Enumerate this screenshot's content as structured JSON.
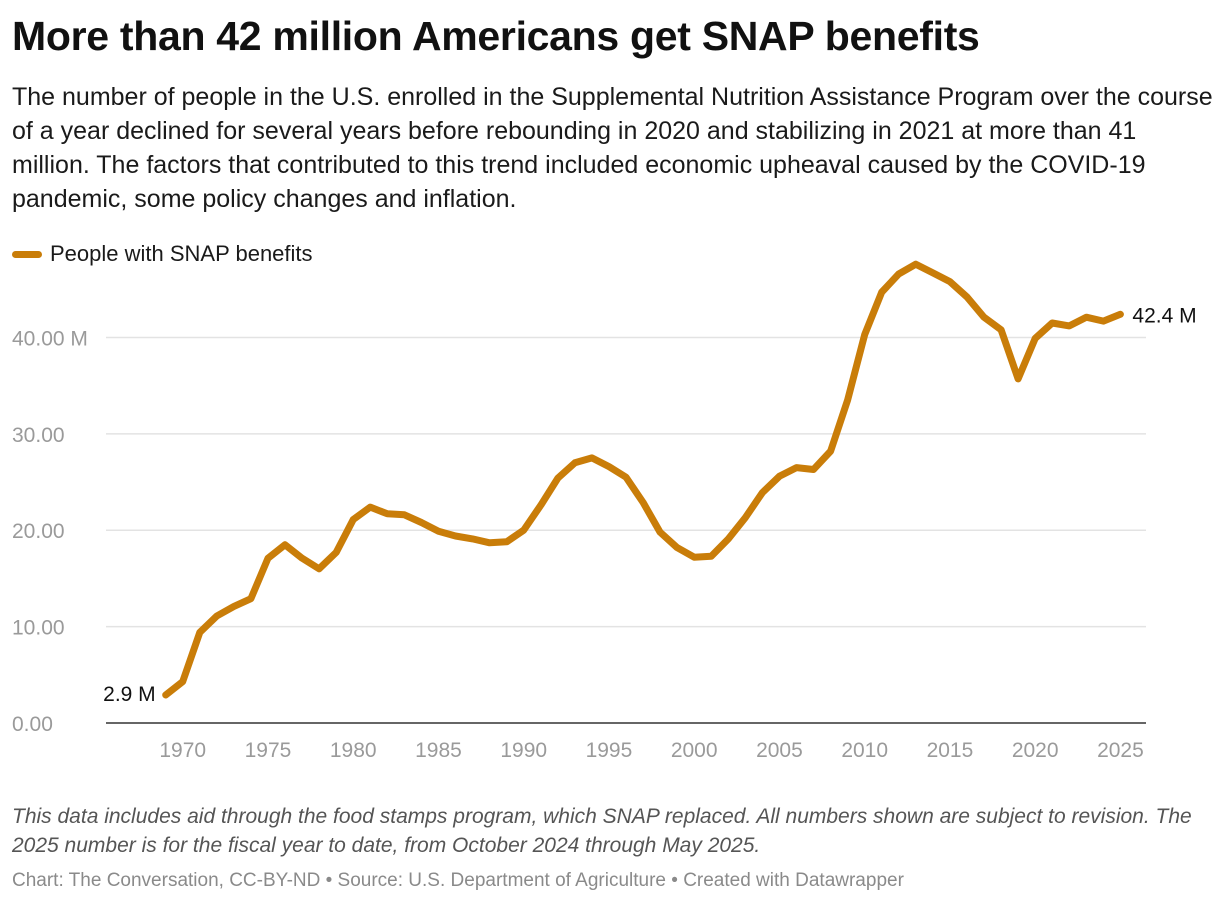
{
  "title": "More than 42 million Americans get SNAP benefits",
  "description": "The number of people in the U.S. enrolled in the Supplemental Nutrition Assistance Program over the course of a year declined for several years before rebounding in 2020 and stabilizing in 2021 at more than 41 million. The factors that contributed to this trend included economic upheaval caused by the COVID-19 pandemic, some policy changes and inflation.",
  "notes": "This data includes aid through the food stamps program, which SNAP replaced. All numbers shown are subject to revision. The 2025 number is for the fiscal year to date, from October 2024 through May 2025.",
  "credit": "Chart: The Conversation, CC-BY-ND • Source: U.S. Department of Agriculture • Created with Datawrapper",
  "colors": {
    "series": "#c97d09",
    "grid": "#e3e3e3",
    "axis": "#333333",
    "tick_text": "#9a9a9a"
  },
  "chart_data": {
    "type": "line",
    "title": "More than 42 million Americans get SNAP benefits",
    "xlabel": "",
    "ylabel": "",
    "xlim": [
      1965.5,
      2026.5
    ],
    "ylim": [
      0,
      47
    ],
    "grid": true,
    "legend_placement": "top-left",
    "x_ticks": [
      "1970",
      "1975",
      "1980",
      "1985",
      "1990",
      "1995",
      "2000",
      "2005",
      "2010",
      "2015",
      "2020",
      "2025"
    ],
    "y_ticks": [
      {
        "value": 0,
        "label": "0.00"
      },
      {
        "value": 10,
        "label": "10.00"
      },
      {
        "value": 20,
        "label": "20.00"
      },
      {
        "value": 30,
        "label": "30.00"
      },
      {
        "value": 40,
        "label": "40.00 M"
      }
    ],
    "series": [
      {
        "name": "People with SNAP benefits",
        "color": "#c97d09",
        "x": [
          1969,
          1970,
          1971,
          1972,
          1973,
          1974,
          1975,
          1976,
          1977,
          1978,
          1979,
          1980,
          1981,
          1982,
          1983,
          1984,
          1985,
          1986,
          1987,
          1988,
          1989,
          1990,
          1991,
          1992,
          1993,
          1994,
          1995,
          1996,
          1997,
          1998,
          1999,
          2000,
          2001,
          2002,
          2003,
          2004,
          2005,
          2006,
          2007,
          2008,
          2009,
          2010,
          2011,
          2012,
          2013,
          2014,
          2015,
          2016,
          2017,
          2018,
          2019,
          2020,
          2021,
          2022,
          2023,
          2024,
          2025
        ],
        "values": [
          2.9,
          4.3,
          9.4,
          11.1,
          12.1,
          12.9,
          17.1,
          18.5,
          17.1,
          16.0,
          17.7,
          21.1,
          22.4,
          21.7,
          21.6,
          20.8,
          19.9,
          19.4,
          19.1,
          18.7,
          18.8,
          20.0,
          22.6,
          25.4,
          27.0,
          27.5,
          26.6,
          25.5,
          22.9,
          19.8,
          18.2,
          17.2,
          17.3,
          19.1,
          21.3,
          23.9,
          25.6,
          26.5,
          26.3,
          28.2,
          33.5,
          40.3,
          44.7,
          46.6,
          47.6,
          46.7,
          45.8,
          44.2,
          42.1,
          40.8,
          35.7,
          39.9,
          41.5,
          41.2,
          42.1,
          41.7,
          42.4
        ]
      }
    ],
    "annotations": [
      {
        "x": 1969,
        "value": 2.9,
        "text": "2.9 M"
      },
      {
        "x": 2025,
        "value": 42.4,
        "text": "42.4 M"
      }
    ]
  }
}
